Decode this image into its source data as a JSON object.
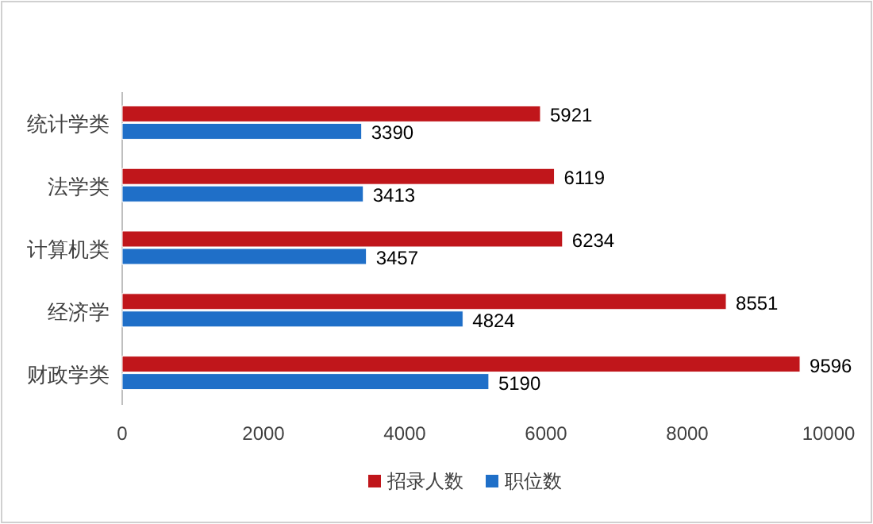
{
  "chart_data": {
    "type": "bar",
    "orientation": "horizontal",
    "categories": [
      "统计学类",
      "法学类",
      "计算机类",
      "经济学",
      "财政学类"
    ],
    "series": [
      {
        "name": "招录人数",
        "color": "#c0161b",
        "values": [
          5921,
          6119,
          6234,
          8551,
          9596
        ]
      },
      {
        "name": "职位数",
        "color": "#1f6fc8",
        "values": [
          3390,
          3413,
          3457,
          4824,
          5190
        ]
      }
    ],
    "xlim": [
      0,
      10000
    ],
    "xticks": [
      0,
      2000,
      4000,
      6000,
      8000,
      10000
    ],
    "grid": false,
    "legend": "bottom",
    "data_labels": true
  }
}
